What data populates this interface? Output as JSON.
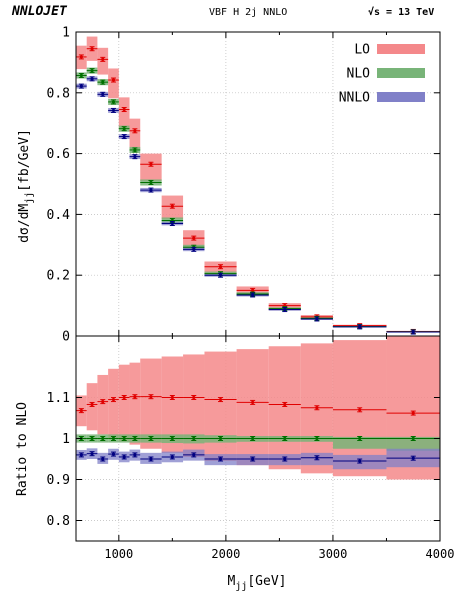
{
  "header": {
    "brand": "NNLOJET",
    "process": "VBF H 2j NNLO",
    "energy": "√s = 13 TeV"
  },
  "colors": {
    "lo_band": "#f4888a",
    "lo_point": "#e00000",
    "nlo_band": "#78b478",
    "nlo_point": "#007000",
    "nnlo_band": "#8080c8",
    "nnlo_point": "#000080"
  },
  "chart_data": [
    {
      "type": "step-band",
      "ylabel_main": "dσ/dM",
      "ylabel_sub": "jj",
      "ylabel_units": "[fb/GeV]",
      "xlim": [
        600,
        4000
      ],
      "ylim": [
        0,
        1
      ],
      "yticks": [
        0,
        0.2,
        0.4,
        0.6,
        0.8,
        1
      ],
      "ytick_labels": [
        "0",
        "0.2",
        "0.4",
        "0.6",
        "0.8",
        "1"
      ],
      "grid": true,
      "legend_placement": "top-right",
      "legend": [
        "LO",
        "NLO",
        "NNLO"
      ],
      "bins": [
        [
          600,
          700
        ],
        [
          700,
          800
        ],
        [
          800,
          900
        ],
        [
          900,
          1000
        ],
        [
          1000,
          1100
        ],
        [
          1100,
          1200
        ],
        [
          1200,
          1400
        ],
        [
          1400,
          1600
        ],
        [
          1600,
          1800
        ],
        [
          1800,
          2100
        ],
        [
          2100,
          2400
        ],
        [
          2400,
          2700
        ],
        [
          2700,
          3000
        ],
        [
          3000,
          3500
        ],
        [
          3500,
          4000
        ]
      ],
      "series": [
        {
          "name": "LO",
          "values": [
            0.918,
            0.945,
            0.91,
            0.842,
            0.745,
            0.675,
            0.565,
            0.427,
            0.322,
            0.228,
            0.15,
            0.1,
            0.063,
            0.034,
            0.015
          ],
          "low": [
            0.878,
            0.905,
            0.86,
            0.782,
            0.685,
            0.615,
            0.51,
            0.385,
            0.288,
            0.205,
            0.132,
            0.085,
            0.054,
            0.029,
            0.012
          ],
          "high": [
            0.955,
            0.985,
            0.948,
            0.88,
            0.785,
            0.715,
            0.6,
            0.462,
            0.348,
            0.245,
            0.163,
            0.108,
            0.069,
            0.037,
            0.017
          ]
        },
        {
          "name": "NLO",
          "values": [
            0.857,
            0.873,
            0.835,
            0.77,
            0.682,
            0.612,
            0.505,
            0.38,
            0.292,
            0.205,
            0.138,
            0.09,
            0.058,
            0.031,
            0.014
          ],
          "low": [
            0.847,
            0.863,
            0.825,
            0.76,
            0.672,
            0.602,
            0.495,
            0.37,
            0.284,
            0.198,
            0.132,
            0.086,
            0.055,
            0.029,
            0.013
          ],
          "high": [
            0.867,
            0.883,
            0.845,
            0.78,
            0.692,
            0.622,
            0.515,
            0.39,
            0.3,
            0.212,
            0.144,
            0.094,
            0.061,
            0.033,
            0.015
          ]
        },
        {
          "name": "NNLO",
          "values": [
            0.822,
            0.846,
            0.795,
            0.742,
            0.656,
            0.59,
            0.48,
            0.37,
            0.285,
            0.2,
            0.135,
            0.087,
            0.056,
            0.03,
            0.013
          ],
          "low": [
            0.814,
            0.838,
            0.787,
            0.734,
            0.648,
            0.582,
            0.473,
            0.364,
            0.279,
            0.195,
            0.13,
            0.083,
            0.053,
            0.028,
            0.012
          ],
          "high": [
            0.83,
            0.854,
            0.803,
            0.75,
            0.664,
            0.598,
            0.487,
            0.376,
            0.291,
            0.205,
            0.14,
            0.091,
            0.059,
            0.032,
            0.014
          ]
        }
      ]
    },
    {
      "type": "step-band",
      "ylabel": "Ratio to NLO",
      "xlabel_main": "M",
      "xlabel_sub": "jj",
      "xlabel_units": "[GeV]",
      "xlim": [
        600,
        4000
      ],
      "ylim": [
        0.75,
        1.25
      ],
      "xticks": [
        1000,
        2000,
        3000,
        4000
      ],
      "xtick_labels": [
        "1000",
        "2000",
        "3000",
        "4000"
      ],
      "yticks": [
        0.8,
        0.9,
        1.0,
        1.1
      ],
      "ytick_labels": [
        "0.8",
        "0.9",
        "1",
        "1.1"
      ],
      "grid": true,
      "bins": [
        [
          600,
          700
        ],
        [
          700,
          800
        ],
        [
          800,
          900
        ],
        [
          900,
          1000
        ],
        [
          1000,
          1100
        ],
        [
          1100,
          1200
        ],
        [
          1200,
          1400
        ],
        [
          1400,
          1600
        ],
        [
          1600,
          1800
        ],
        [
          1800,
          2100
        ],
        [
          2100,
          2400
        ],
        [
          2400,
          2700
        ],
        [
          2700,
          3000
        ],
        [
          3000,
          3500
        ],
        [
          3500,
          4000
        ]
      ],
      "series": [
        {
          "name": "LO",
          "values": [
            1.068,
            1.083,
            1.09,
            1.095,
            1.1,
            1.102,
            1.102,
            1.1,
            1.1,
            1.095,
            1.088,
            1.083,
            1.075,
            1.07,
            1.062
          ],
          "low": [
            1.03,
            1.02,
            1.01,
            1.0,
            0.993,
            0.985,
            0.975,
            0.965,
            0.955,
            0.945,
            0.935,
            0.925,
            0.915,
            0.908,
            0.9
          ],
          "high": [
            1.105,
            1.135,
            1.155,
            1.17,
            1.18,
            1.185,
            1.195,
            1.2,
            1.205,
            1.212,
            1.218,
            1.225,
            1.232,
            1.24,
            1.25
          ]
        },
        {
          "name": "NLO",
          "values": [
            1,
            1,
            1,
            1,
            1,
            1,
            1,
            1,
            1,
            1,
            1,
            1,
            1,
            1,
            1
          ],
          "low": [
            0.99,
            0.99,
            0.99,
            0.99,
            0.99,
            0.99,
            0.99,
            0.989,
            0.988,
            0.99,
            0.992,
            0.992,
            0.992,
            0.975,
            0.97
          ],
          "high": [
            1.01,
            1.01,
            1.01,
            1.01,
            1.01,
            1.01,
            1.01,
            1.01,
            1.01,
            1.008,
            1.006,
            1.006,
            1.006,
            1.004,
            1.004
          ]
        },
        {
          "name": "NNLO",
          "values": [
            0.96,
            0.963,
            0.95,
            0.962,
            0.955,
            0.96,
            0.95,
            0.955,
            0.96,
            0.95,
            0.95,
            0.95,
            0.953,
            0.945,
            0.952
          ],
          "low": [
            0.948,
            0.95,
            0.938,
            0.948,
            0.942,
            0.946,
            0.938,
            0.942,
            0.946,
            0.935,
            0.935,
            0.935,
            0.935,
            0.925,
            0.93
          ],
          "high": [
            0.972,
            0.976,
            0.965,
            0.975,
            0.968,
            0.973,
            0.965,
            0.968,
            0.973,
            0.962,
            0.962,
            0.962,
            0.965,
            0.96,
            0.975
          ]
        }
      ]
    }
  ]
}
